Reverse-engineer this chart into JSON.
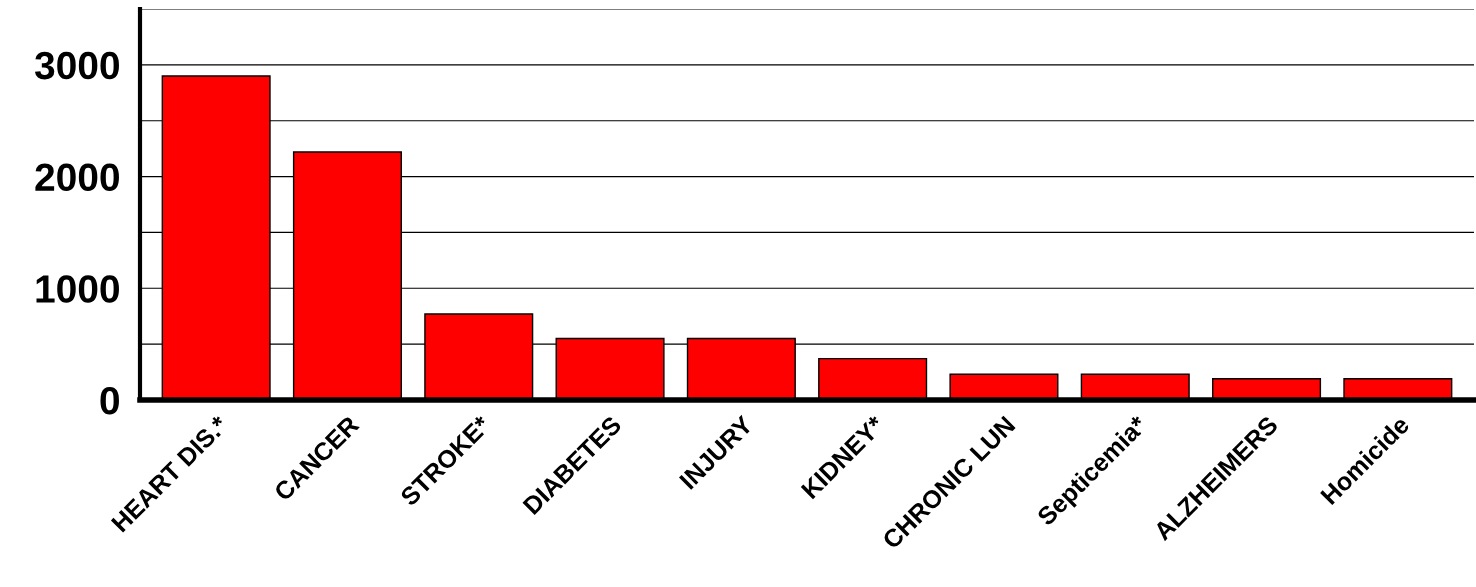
{
  "chart_data": {
    "type": "bar",
    "categories": [
      "HEART DIS.*",
      "CANCER",
      "STROKE*",
      "DIABETES",
      "INJURY",
      "KIDNEY*",
      "CHRONIC LUN",
      "Septicemia*",
      "ALZHEIMERS",
      "Homicide"
    ],
    "values": [
      2900,
      2220,
      770,
      550,
      550,
      370,
      230,
      230,
      190,
      190
    ],
    "color": "#ff0000",
    "ylim": [
      0,
      3500
    ],
    "yticks": [
      0,
      {
        "value": 500,
        "label": null
      },
      1000,
      {
        "value": 1500,
        "label": null
      },
      2000,
      {
        "value": 2500,
        "label": null
      },
      3000,
      {
        "value": 3500,
        "label": null
      }
    ],
    "grid": "y",
    "legend": false
  }
}
